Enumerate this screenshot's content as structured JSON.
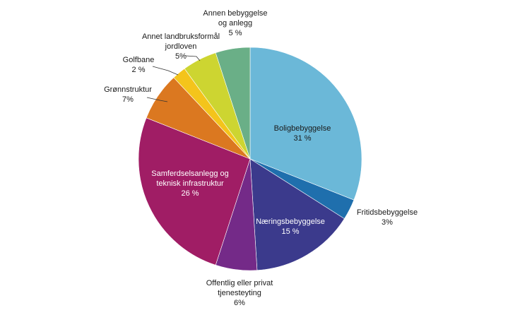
{
  "chart_data": {
    "type": "pie",
    "start_angle_deg": 0,
    "direction": "clockwise",
    "slices": [
      {
        "name": "Boligbebyggelse",
        "label_lines": [
          "Boligbebyggelse",
          "31 %"
        ],
        "value": 31,
        "color": "#6bb8d8",
        "label_pos": "inside",
        "label_color": "dark"
      },
      {
        "name": "Fritidsbebyggelse",
        "label_lines": [
          "Fritidsbebyggelse",
          "3%"
        ],
        "value": 3,
        "color": "#1f6fad",
        "label_pos": "outside"
      },
      {
        "name": "Næringsbebyggelse",
        "label_lines": [
          "Næringsbebyggelse",
          "15 %"
        ],
        "value": 15,
        "color": "#3b3a8c",
        "label_pos": "inside",
        "label_color": "light"
      },
      {
        "name": "Offentlig eller privat tjenesteyting",
        "label_lines": [
          "Offentlig eller privat",
          "tjenesteyting",
          "6%"
        ],
        "value": 6,
        "color": "#742a88",
        "label_pos": "outside"
      },
      {
        "name": "Samferdselsanlegg og teknisk infrastruktur",
        "label_lines": [
          "Samferdselsanlegg og",
          "teknisk infrastruktur",
          "26 %"
        ],
        "value": 26,
        "color": "#a01d65",
        "label_pos": "inside",
        "label_color": "light"
      },
      {
        "name": "Grønnstruktur",
        "label_lines": [
          "Grønnstruktur",
          "7%"
        ],
        "value": 7,
        "color": "#db7820",
        "label_pos": "outside"
      },
      {
        "name": "Golfbane",
        "label_lines": [
          "Golfbane",
          "2 %"
        ],
        "value": 2,
        "color": "#f4c41b",
        "label_pos": "outside"
      },
      {
        "name": "Annet landbruksformål jordloven",
        "label_lines": [
          "Annet landbruksformål",
          "jordloven",
          "5%"
        ],
        "value": 5,
        "color": "#cdd531",
        "label_pos": "outside"
      },
      {
        "name": "Annen bebyggelse og anlegg",
        "label_lines": [
          "Annen bebyggelse",
          "og anlegg",
          "5 %"
        ],
        "value": 5,
        "color": "#6aaf87",
        "label_pos": "outside"
      }
    ]
  }
}
